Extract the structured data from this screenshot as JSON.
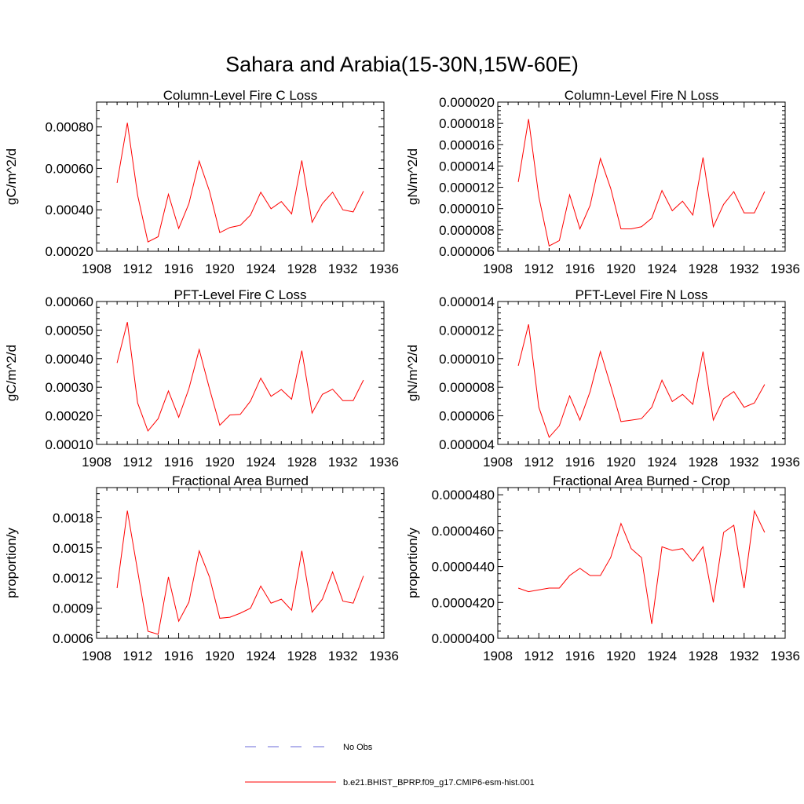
{
  "figure": {
    "title": "Sahara and Arabia(15-30N,15W-60E)"
  },
  "legend": {
    "items": [
      {
        "label": "No Obs",
        "color": "#6a6ad8",
        "style": "dashed"
      },
      {
        "label": "b.e21.BHIST_BPRP.f09_g17.CMIP6-esm-hist.001",
        "color": "#ff0000",
        "style": "solid"
      }
    ]
  },
  "chart_data": [
    {
      "type": "line",
      "title": "Column-Level Fire C Loss",
      "xlabel": "",
      "ylabel": "gC/m^2/d",
      "xlim": [
        1908,
        1936
      ],
      "ylim": [
        0.0002,
        0.00092
      ],
      "x_ticks": [
        "1908",
        "1912",
        "1916",
        "1920",
        "1924",
        "1928",
        "1932",
        "1936"
      ],
      "y_ticks": [
        {
          "value": 0.0002,
          "label": "0.00020"
        },
        {
          "value": 0.0004,
          "label": "0.00040"
        },
        {
          "value": 0.0006,
          "label": "0.00060"
        },
        {
          "value": 0.0008,
          "label": "0.00080"
        }
      ],
      "grid": false,
      "series": [
        {
          "name": "b.e21.BHIST_BPRP.f09_g17.CMIP6-esm-hist.001",
          "color": "#ff0000",
          "x": [
            1910,
            1911,
            1912,
            1913,
            1914,
            1915,
            1916,
            1917,
            1918,
            1919,
            1920,
            1921,
            1922,
            1923,
            1924,
            1925,
            1926,
            1927,
            1928,
            1929,
            1930,
            1931,
            1932,
            1933,
            1934
          ],
          "values": [
            0.00053,
            0.00082,
            0.00047,
            0.000245,
            0.00027,
            0.000475,
            0.00031,
            0.00043,
            0.000635,
            0.00049,
            0.00029,
            0.000315,
            0.000325,
            0.000375,
            0.000485,
            0.000405,
            0.00044,
            0.00038,
            0.000638,
            0.00034,
            0.00043,
            0.000485,
            0.0004,
            0.00039,
            0.00049
          ]
        }
      ]
    },
    {
      "type": "line",
      "title": "Column-Level Fire N Loss",
      "xlabel": "",
      "ylabel": "gN/m^2/d",
      "xlim": [
        1908,
        1936
      ],
      "ylim": [
        6e-06,
        2e-05
      ],
      "x_ticks": [
        "1908",
        "1912",
        "1916",
        "1920",
        "1924",
        "1928",
        "1932",
        "1936"
      ],
      "y_ticks": [
        {
          "value": 6e-06,
          "label": "0.000006"
        },
        {
          "value": 8e-06,
          "label": "0.000008"
        },
        {
          "value": 1e-05,
          "label": "0.000010"
        },
        {
          "value": 1.2e-05,
          "label": "0.000012"
        },
        {
          "value": 1.4e-05,
          "label": "0.000014"
        },
        {
          "value": 1.6e-05,
          "label": "0.000016"
        },
        {
          "value": 1.8e-05,
          "label": "0.000018"
        },
        {
          "value": 2e-05,
          "label": "0.000020"
        }
      ],
      "grid": false,
      "series": [
        {
          "name": "b.e21.BHIST_BPRP.f09_g17.CMIP6-esm-hist.001",
          "color": "#ff0000",
          "x": [
            1910,
            1911,
            1912,
            1913,
            1914,
            1915,
            1916,
            1917,
            1918,
            1919,
            1920,
            1921,
            1922,
            1923,
            1924,
            1925,
            1926,
            1927,
            1928,
            1929,
            1930,
            1931,
            1932,
            1933,
            1934
          ],
          "values": [
            1.25e-05,
            1.84e-05,
            1.11e-05,
            6.5e-06,
            7e-06,
            1.13e-05,
            8.1e-06,
            1.03e-05,
            1.47e-05,
            1.19e-05,
            8.1e-06,
            8.1e-06,
            8.3e-06,
            9.1e-06,
            1.17e-05,
            9.8e-06,
            1.07e-05,
            9.4e-06,
            1.48e-05,
            8.3e-06,
            1.04e-05,
            1.16e-05,
            9.6e-06,
            9.6e-06,
            1.16e-05
          ]
        }
      ]
    },
    {
      "type": "line",
      "title": "PFT-Level Fire C Loss",
      "xlabel": "",
      "ylabel": "gC/m^2/d",
      "xlim": [
        1908,
        1936
      ],
      "ylim": [
        0.0001,
        0.0006
      ],
      "x_ticks": [
        "1908",
        "1912",
        "1916",
        "1920",
        "1924",
        "1928",
        "1932",
        "1936"
      ],
      "y_ticks": [
        {
          "value": 0.0001,
          "label": "0.00010"
        },
        {
          "value": 0.0002,
          "label": "0.00020"
        },
        {
          "value": 0.0003,
          "label": "0.00030"
        },
        {
          "value": 0.0004,
          "label": "0.00040"
        },
        {
          "value": 0.0005,
          "label": "0.00050"
        },
        {
          "value": 0.0006,
          "label": "0.00060"
        }
      ],
      "grid": false,
      "series": [
        {
          "name": "b.e21.BHIST_BPRP.f09_g17.CMIP6-esm-hist.001",
          "color": "#ff0000",
          "x": [
            1910,
            1911,
            1912,
            1913,
            1914,
            1915,
            1916,
            1917,
            1918,
            1919,
            1920,
            1921,
            1922,
            1923,
            1924,
            1925,
            1926,
            1927,
            1928,
            1929,
            1930,
            1931,
            1932,
            1933,
            1934
          ],
          "values": [
            0.000385,
            0.000528,
            0.000245,
            0.000147,
            0.00019,
            0.000287,
            0.000195,
            0.000295,
            0.000432,
            0.000295,
            0.000167,
            0.000203,
            0.000205,
            0.000252,
            0.000332,
            0.000268,
            0.000292,
            0.000258,
            0.000428,
            0.00021,
            0.000275,
            0.000293,
            0.000253,
            0.000253,
            0.000325
          ]
        }
      ]
    },
    {
      "type": "line",
      "title": "PFT-Level Fire N Loss",
      "xlabel": "",
      "ylabel": "gN/m^2/d",
      "xlim": [
        1908,
        1936
      ],
      "ylim": [
        4e-06,
        1.4e-05
      ],
      "x_ticks": [
        "1908",
        "1912",
        "1916",
        "1920",
        "1924",
        "1928",
        "1932",
        "1936"
      ],
      "y_ticks": [
        {
          "value": 4e-06,
          "label": "0.000004"
        },
        {
          "value": 6e-06,
          "label": "0.000006"
        },
        {
          "value": 8e-06,
          "label": "0.000008"
        },
        {
          "value": 1e-05,
          "label": "0.000010"
        },
        {
          "value": 1.2e-05,
          "label": "0.000012"
        },
        {
          "value": 1.4e-05,
          "label": "0.000014"
        }
      ],
      "grid": false,
      "series": [
        {
          "name": "b.e21.BHIST_BPRP.f09_g17.CMIP6-esm-hist.001",
          "color": "#ff0000",
          "x": [
            1910,
            1911,
            1912,
            1913,
            1914,
            1915,
            1916,
            1917,
            1918,
            1919,
            1920,
            1921,
            1922,
            1923,
            1924,
            1925,
            1926,
            1927,
            1928,
            1929,
            1930,
            1931,
            1932,
            1933,
            1934
          ],
          "values": [
            9.5e-06,
            1.24e-05,
            6.6e-06,
            4.5e-06,
            5.3e-06,
            7.4e-06,
            5.7e-06,
            7.7e-06,
            1.05e-05,
            8.1e-06,
            5.6e-06,
            5.7e-06,
            5.8e-06,
            6.6e-06,
            8.5e-06,
            7e-06,
            7.5e-06,
            6.8e-06,
            1.05e-05,
            5.7e-06,
            7.2e-06,
            7.7e-06,
            6.6e-06,
            6.9e-06,
            8.2e-06
          ]
        }
      ]
    },
    {
      "type": "line",
      "title": "Fractional Area Burned",
      "xlabel": "",
      "ylabel": "proportion/y",
      "xlim": [
        1908,
        1936
      ],
      "ylim": [
        0.0006,
        0.0021
      ],
      "x_ticks": [
        "1908",
        "1912",
        "1916",
        "1920",
        "1924",
        "1928",
        "1932",
        "1936"
      ],
      "y_ticks": [
        {
          "value": 0.0006,
          "label": "0.0006"
        },
        {
          "value": 0.0009,
          "label": "0.0009"
        },
        {
          "value": 0.0012,
          "label": "0.0012"
        },
        {
          "value": 0.0015,
          "label": "0.0015"
        },
        {
          "value": 0.0018,
          "label": "0.0018"
        }
      ],
      "grid": false,
      "series": [
        {
          "name": "b.e21.BHIST_BPRP.f09_g17.CMIP6-esm-hist.001",
          "color": "#ff0000",
          "x": [
            1910,
            1911,
            1912,
            1913,
            1914,
            1915,
            1916,
            1917,
            1918,
            1919,
            1920,
            1921,
            1922,
            1923,
            1924,
            1925,
            1926,
            1927,
            1928,
            1929,
            1930,
            1931,
            1932,
            1933,
            1934
          ],
          "values": [
            0.0011,
            0.00187,
            0.00127,
            0.00067,
            0.00064,
            0.00121,
            0.00077,
            0.00096,
            0.00147,
            0.00121,
            0.0008,
            0.00081,
            0.00085,
            0.0009,
            0.00112,
            0.00095,
            0.00099,
            0.00088,
            0.00147,
            0.00086,
            0.00099,
            0.00126,
            0.00097,
            0.00095,
            0.00122
          ]
        }
      ]
    },
    {
      "type": "line",
      "title": "Fractional Area Burned - Crop",
      "xlabel": "",
      "ylabel": "proportion/y",
      "xlim": [
        1908,
        1936
      ],
      "ylim": [
        4e-05,
        4.84e-05
      ],
      "x_ticks": [
        "1908",
        "1912",
        "1916",
        "1920",
        "1924",
        "1928",
        "1932",
        "1936"
      ],
      "y_ticks": [
        {
          "value": 4e-05,
          "label": "0.0000400"
        },
        {
          "value": 4.2e-05,
          "label": "0.0000420"
        },
        {
          "value": 4.4e-05,
          "label": "0.0000440"
        },
        {
          "value": 4.6e-05,
          "label": "0.0000460"
        },
        {
          "value": 4.8e-05,
          "label": "0.0000480"
        }
      ],
      "grid": false,
      "series": [
        {
          "name": "b.e21.BHIST_BPRP.f09_g17.CMIP6-esm-hist.001",
          "color": "#ff0000",
          "x": [
            1910,
            1911,
            1912,
            1913,
            1914,
            1915,
            1916,
            1917,
            1918,
            1919,
            1920,
            1921,
            1922,
            1923,
            1924,
            1925,
            1926,
            1927,
            1928,
            1929,
            1930,
            1931,
            1932,
            1933,
            1934
          ],
          "values": [
            4.28e-05,
            4.26e-05,
            4.27e-05,
            4.28e-05,
            4.28e-05,
            4.35e-05,
            4.39e-05,
            4.35e-05,
            4.35e-05,
            4.45e-05,
            4.64e-05,
            4.5e-05,
            4.45e-05,
            4.08e-05,
            4.51e-05,
            4.49e-05,
            4.5e-05,
            4.43e-05,
            4.51e-05,
            4.2e-05,
            4.59e-05,
            4.63e-05,
            4.28e-05,
            4.71e-05,
            4.59e-05
          ]
        }
      ]
    }
  ]
}
